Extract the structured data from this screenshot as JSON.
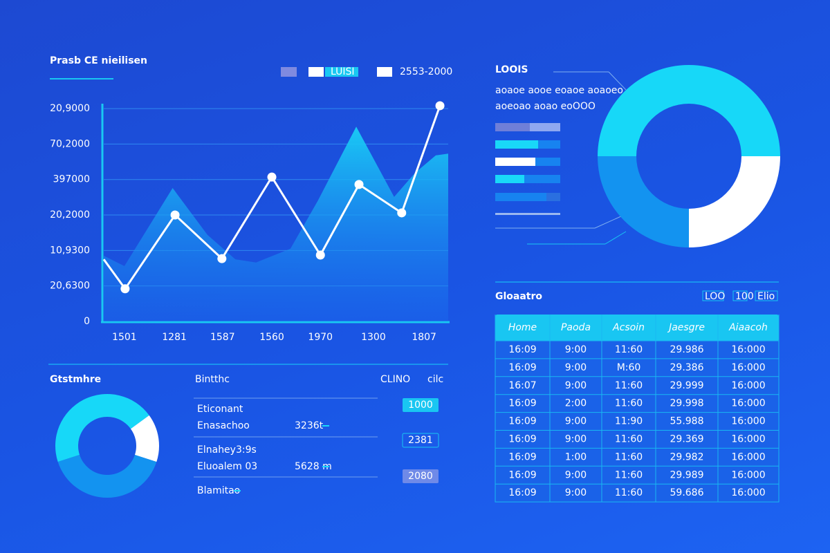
{
  "header": {
    "title": "Prasb CE nieilisen"
  },
  "chart_data": [
    {
      "type": "line",
      "series": [
        {
          "name": "LUISI",
          "color": "#19c8f2",
          "style": "area",
          "x": [
            0,
            0.6,
            2.0,
            3.01,
            3.82,
            4.42,
            5.42,
            6.22,
            7.33,
            8.43,
            9.04,
            9.64,
            10
          ],
          "values": [
            1.85,
            1.56,
            3.76,
            2.44,
            1.75,
            1.66,
            2.05,
            3.41,
            5.49,
            3.51,
            4.19,
            4.68,
            4.73
          ]
        },
        {
          "name": "2553-2000",
          "color": "#ffffff",
          "style": "line",
          "x": [
            0,
            0.62,
            2.07,
            3.43,
            4.88,
            6.29,
            7.41,
            8.65,
            9.76
          ],
          "values": [
            1.75,
            0.92,
            3.0,
            1.77,
            4.07,
            1.87,
            3.86,
            3.06,
            6.08
          ]
        }
      ],
      "xlim": [
        0,
        10
      ],
      "xticks": [
        {
          "value": 0.6,
          "label": "1501"
        },
        {
          "value": 2.05,
          "label": "1281"
        },
        {
          "value": 3.45,
          "label": "1587"
        },
        {
          "value": 4.88,
          "label": "1560"
        },
        {
          "value": 6.29,
          "label": "1970"
        },
        {
          "value": 7.83,
          "label": "1300"
        },
        {
          "value": 9.3,
          "label": "1807"
        }
      ],
      "ylim": [
        0,
        6.2
      ],
      "yticks": [
        0,
        {
          "value": 1,
          "label": "20,6300"
        },
        {
          "value": 2,
          "label": "10,9300"
        },
        {
          "value": 3,
          "label": "20,2000"
        },
        {
          "value": 4,
          "label": "397000"
        },
        {
          "value": 5,
          "label": "70,2000"
        },
        {
          "value": 6,
          "label": "20,9000"
        }
      ],
      "grid": true
    },
    {
      "type": "pie",
      "values": [
        50,
        25,
        25
      ],
      "colors": [
        "#17d8f8",
        "#ffffff",
        "#1393f0"
      ]
    },
    {
      "type": "pie",
      "values": [
        45,
        15,
        40
      ],
      "colors": [
        "#17d8f8",
        "#ffffff",
        "#1393f0"
      ]
    }
  ],
  "side_panel": {
    "title": "LOOIS",
    "notes": [
      "aoaoe aooe eoaoe aoaoeo",
      "aoeoao aoao eoOOO"
    ]
  },
  "table": {
    "title": "Gloaatro",
    "tabs": [
      "LOO",
      "100",
      "Elio"
    ],
    "columns": [
      "Home",
      "Paoda",
      "Acsoin",
      "Jaesgre",
      "Aiaacoh"
    ],
    "rows": [
      [
        "16:09",
        "9:00",
        "11:60",
        "29.986",
        "16:000"
      ],
      [
        "16:09",
        "9:00",
        "M:60",
        "29.386",
        "16:000"
      ],
      [
        "16:07",
        "9:00",
        "11:60",
        "29.999",
        "16:000"
      ],
      [
        "16:09",
        "2:00",
        "11:60",
        "29.998",
        "16:000"
      ],
      [
        "16:09",
        "9:00",
        "11:90",
        "55.988",
        "16:000"
      ],
      [
        "16:09",
        "9:00",
        "11:60",
        "29.369",
        "16:000"
      ],
      [
        "16:09",
        "1:00",
        "11:60",
        "29.982",
        "16:000"
      ],
      [
        "16:09",
        "9:00",
        "11:60",
        "29.989",
        "16:000"
      ],
      [
        "16:09",
        "9:00",
        "11:60",
        "59.686",
        "16:000"
      ]
    ]
  },
  "summary": {
    "title": "Gtstmhre",
    "subtitle": "Bintthc",
    "legend": [
      "CLINO",
      "cilc"
    ],
    "items": [
      {
        "caption": "Eticonant",
        "label": "Enasachoo",
        "value": "3236t"
      },
      {
        "caption": "Elnahey3:9s",
        "label": "Eluoalem 03",
        "value": "5628 m"
      },
      {
        "caption": "Blamitao"
      }
    ],
    "buttons": [
      "1000",
      "2381",
      "2080"
    ]
  }
}
